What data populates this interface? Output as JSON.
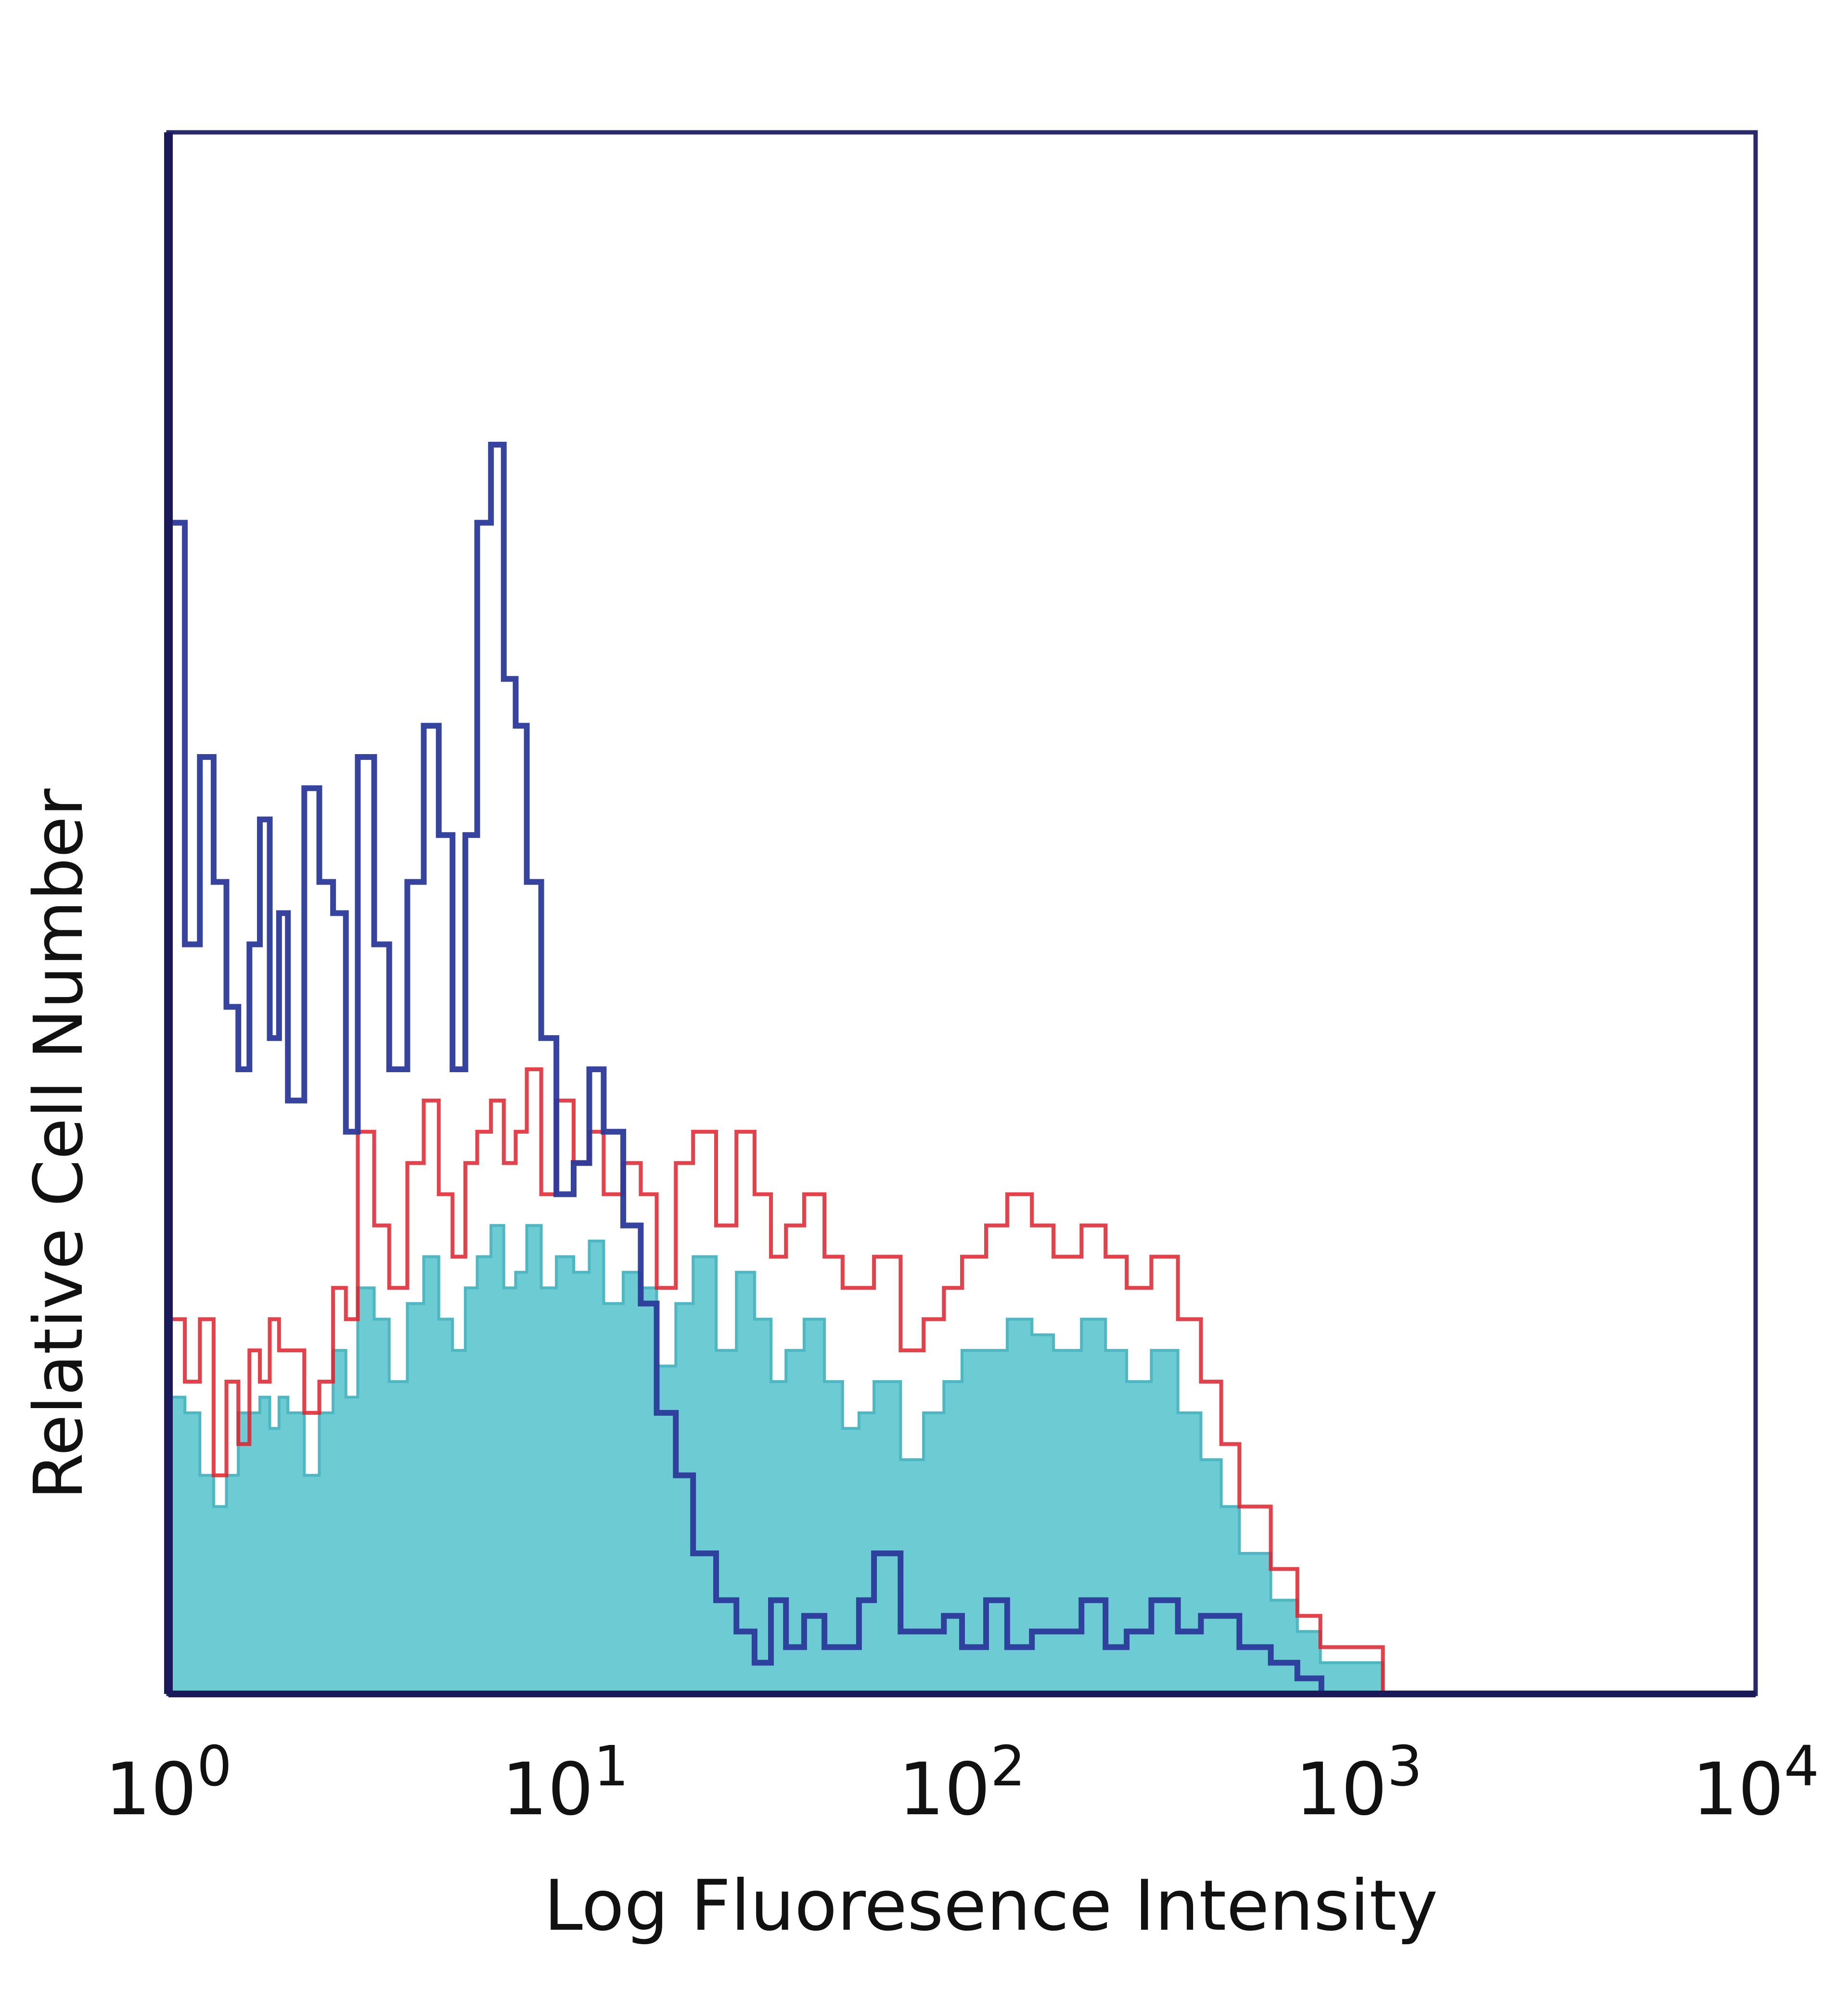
{
  "chart_data": {
    "type": "histogram",
    "title": "",
    "xlabel": "Log Fluoresence Intensity",
    "ylabel": "Relative Cell Number",
    "x_scale": "log",
    "xlim": [
      1,
      10000
    ],
    "ylim": [
      0,
      100
    ],
    "x_ticks": [
      {
        "value": 1,
        "base": "10",
        "exp": "0"
      },
      {
        "value": 10,
        "base": "10",
        "exp": "1"
      },
      {
        "value": 100,
        "base": "10",
        "exp": "2"
      },
      {
        "value": 1000,
        "base": "10",
        "exp": "3"
      },
      {
        "value": 10000,
        "base": "10",
        "exp": "4"
      }
    ],
    "legend": "none",
    "grid": false,
    "colors": {
      "blue_trace": "#2b3a9a",
      "red_trace": "#e0202a",
      "cyan_fill": "#6ccbd3",
      "frame": "#2a2a6a",
      "axis": "#1a1a5a"
    },
    "series": [
      {
        "style": "step-line",
        "color": "#2b3a9a",
        "x": [
          1.0,
          1.1,
          1.2,
          1.3,
          1.4,
          1.5,
          1.6,
          1.7,
          1.8,
          1.9,
          2.0,
          2.2,
          2.4,
          2.6,
          2.8,
          3.0,
          3.3,
          3.6,
          4.0,
          4.4,
          4.8,
          5.2,
          5.6,
          6.0,
          6.5,
          7.0,
          7.5,
          8.0,
          8.7,
          9.5,
          10.5,
          11.5,
          12.5,
          14.0,
          15.5,
          17.0,
          19.0,
          21.0,
          24.0,
          27.0,
          30.0,
          33.0,
          36.0,
          40.0,
          45.0,
          50.0,
          55.0,
          60.0,
          70.0,
          80.0,
          90.0,
          100.0,
          115.0,
          130.0,
          150.0,
          170.0,
          200.0,
          230.0,
          260.0,
          300.0,
          350.0,
          400.0,
          450.0,
          500.0,
          600.0,
          700.0
        ],
        "values": [
          75,
          48,
          60,
          52,
          44,
          40,
          48,
          56,
          42,
          50,
          38,
          58,
          52,
          50,
          36,
          60,
          48,
          40,
          52,
          62,
          55,
          40,
          55,
          75,
          80,
          65,
          62,
          52,
          42,
          32,
          34,
          40,
          36,
          30,
          25,
          18,
          14,
          9,
          6,
          4,
          2,
          6,
          3,
          5,
          3,
          3,
          6,
          9,
          4,
          4,
          5,
          3,
          6,
          3,
          4,
          4,
          6,
          3,
          4,
          6,
          4,
          5,
          5,
          3,
          2,
          1
        ]
      },
      {
        "style": "step-line",
        "color": "#e0202a",
        "x": [
          1.0,
          1.1,
          1.2,
          1.3,
          1.4,
          1.5,
          1.6,
          1.7,
          1.8,
          1.9,
          2.0,
          2.2,
          2.4,
          2.6,
          2.8,
          3.0,
          3.3,
          3.6,
          4.0,
          4.4,
          4.8,
          5.2,
          5.6,
          6.0,
          6.5,
          7.0,
          7.5,
          8.0,
          8.7,
          9.5,
          10.5,
          11.5,
          12.5,
          14.0,
          15.5,
          17.0,
          19.0,
          21.0,
          24.0,
          27.0,
          30.0,
          33.0,
          36.0,
          40.0,
          45.0,
          50.0,
          55.0,
          60.0,
          70.0,
          80.0,
          90.0,
          100.0,
          115.0,
          130.0,
          150.0,
          170.0,
          200.0,
          230.0,
          260.0,
          300.0,
          350.0,
          400.0,
          450.0,
          500.0,
          600.0,
          700.0,
          800.0,
          1000.0
        ],
        "values": [
          24,
          20,
          24,
          14,
          20,
          16,
          22,
          20,
          24,
          22,
          22,
          18,
          20,
          26,
          24,
          36,
          30,
          26,
          34,
          38,
          32,
          28,
          34,
          36,
          38,
          34,
          36,
          40,
          32,
          38,
          34,
          36,
          32,
          34,
          32,
          26,
          34,
          36,
          30,
          36,
          32,
          28,
          30,
          32,
          28,
          26,
          26,
          28,
          22,
          24,
          26,
          28,
          30,
          32,
          30,
          28,
          30,
          28,
          26,
          28,
          24,
          20,
          16,
          12,
          8,
          5,
          3,
          3
        ]
      },
      {
        "style": "filled-step",
        "color": "#6ccbd3",
        "x": [
          1.0,
          1.1,
          1.2,
          1.3,
          1.4,
          1.5,
          1.6,
          1.7,
          1.8,
          1.9,
          2.0,
          2.2,
          2.4,
          2.6,
          2.8,
          3.0,
          3.3,
          3.6,
          4.0,
          4.4,
          4.8,
          5.2,
          5.6,
          6.0,
          6.5,
          7.0,
          7.5,
          8.0,
          8.7,
          9.5,
          10.5,
          11.5,
          12.5,
          14.0,
          15.5,
          17.0,
          19.0,
          21.0,
          24.0,
          27.0,
          30.0,
          33.0,
          36.0,
          40.0,
          45.0,
          50.0,
          55.0,
          60.0,
          70.0,
          80.0,
          90.0,
          100.0,
          115.0,
          130.0,
          150.0,
          170.0,
          200.0,
          230.0,
          260.0,
          300.0,
          350.0,
          400.0,
          450.0,
          500.0,
          600.0,
          700.0,
          800.0,
          1000.0
        ],
        "values": [
          19,
          18,
          14,
          12,
          14,
          18,
          18,
          19,
          17,
          19,
          18,
          14,
          18,
          22,
          19,
          26,
          24,
          20,
          25,
          28,
          24,
          22,
          26,
          28,
          30,
          26,
          27,
          30,
          26,
          28,
          27,
          29,
          25,
          27,
          26,
          21,
          25,
          28,
          22,
          27,
          24,
          20,
          22,
          24,
          20,
          17,
          18,
          20,
          15,
          18,
          20,
          22,
          22,
          24,
          23,
          22,
          24,
          22,
          20,
          22,
          18,
          15,
          12,
          9,
          6,
          4,
          2,
          2
        ]
      }
    ]
  }
}
